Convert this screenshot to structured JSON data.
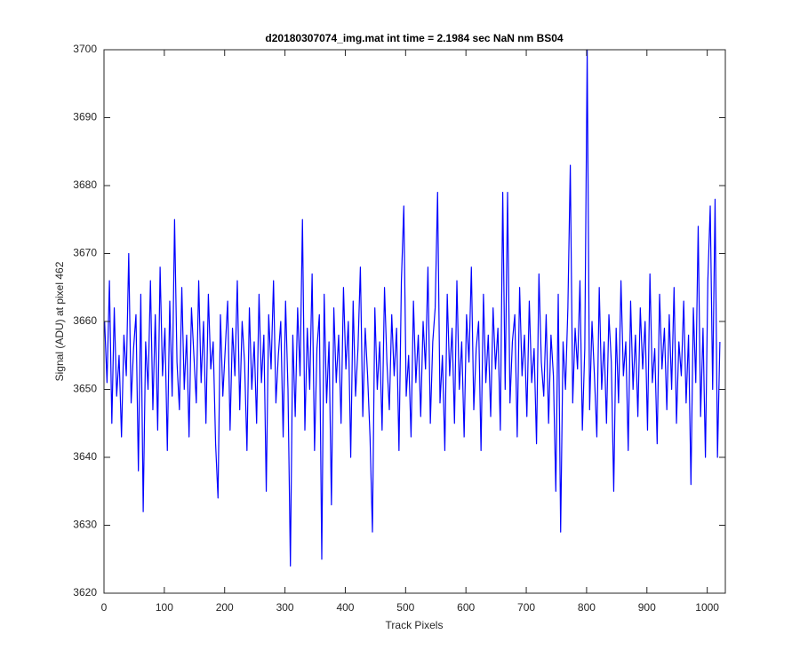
{
  "chart_data": {
    "type": "line",
    "title": "d20180307074_img.mat int time = 2.1984 sec  NaN nm BS04",
    "xlabel": "Track Pixels",
    "ylabel": "Signal (ADU) at pixel 462",
    "xlim": [
      0,
      1030
    ],
    "ylim": [
      3620,
      3700
    ],
    "xticks": [
      0,
      100,
      200,
      300,
      400,
      500,
      600,
      700,
      800,
      900,
      1000
    ],
    "yticks": [
      3620,
      3630,
      3640,
      3650,
      3660,
      3670,
      3680,
      3690,
      3700
    ],
    "grid": false,
    "x": [
      1,
      5,
      9,
      13,
      17,
      21,
      25,
      29,
      33,
      37,
      41,
      45,
      49,
      53,
      57,
      61,
      65,
      69,
      73,
      77,
      81,
      85,
      89,
      93,
      97,
      101,
      105,
      109,
      113,
      117,
      121,
      125,
      129,
      133,
      137,
      141,
      145,
      149,
      153,
      157,
      161,
      165,
      169,
      173,
      177,
      181,
      185,
      189,
      193,
      197,
      201,
      205,
      209,
      213,
      217,
      221,
      225,
      229,
      233,
      237,
      241,
      245,
      249,
      253,
      257,
      261,
      265,
      269,
      273,
      277,
      281,
      285,
      289,
      293,
      297,
      301,
      305,
      309,
      313,
      317,
      321,
      325,
      329,
      333,
      337,
      341,
      345,
      349,
      353,
      357,
      361,
      365,
      369,
      373,
      377,
      381,
      385,
      389,
      393,
      397,
      401,
      405,
      409,
      413,
      417,
      421,
      425,
      429,
      433,
      437,
      441,
      445,
      449,
      453,
      457,
      461,
      465,
      469,
      473,
      477,
      481,
      485,
      489,
      493,
      497,
      501,
      505,
      509,
      513,
      517,
      521,
      525,
      529,
      533,
      537,
      541,
      545,
      549,
      553,
      557,
      561,
      565,
      569,
      573,
      577,
      581,
      585,
      589,
      593,
      597,
      601,
      605,
      609,
      613,
      617,
      621,
      625,
      629,
      633,
      637,
      641,
      645,
      649,
      653,
      657,
      661,
      665,
      669,
      673,
      677,
      681,
      685,
      689,
      693,
      697,
      701,
      705,
      709,
      713,
      717,
      721,
      725,
      729,
      733,
      737,
      741,
      745,
      749,
      753,
      757,
      761,
      765,
      769,
      773,
      777,
      781,
      785,
      789,
      793,
      797,
      801,
      805,
      809,
      813,
      817,
      821,
      825,
      829,
      833,
      837,
      841,
      845,
      849,
      853,
      857,
      861,
      865,
      869,
      873,
      877,
      881,
      885,
      889,
      893,
      897,
      901,
      905,
      909,
      913,
      917,
      921,
      925,
      929,
      933,
      937,
      941,
      945,
      949,
      953,
      957,
      961,
      965,
      969,
      973,
      977,
      981,
      985,
      989,
      993,
      997,
      1001,
      1005,
      1009,
      1013,
      1017,
      1021
    ],
    "series": [
      {
        "color": "#0000ff",
        "values": [
          3660,
          3651,
          3666,
          3645,
          3662,
          3649,
          3655,
          3643,
          3658,
          3652,
          3670,
          3648,
          3656,
          3661,
          3638,
          3664,
          3632,
          3657,
          3650,
          3666,
          3647,
          3661,
          3644,
          3668,
          3652,
          3659,
          3641,
          3663,
          3649,
          3675,
          3654,
          3647,
          3665,
          3650,
          3658,
          3643,
          3662,
          3655,
          3648,
          3666,
          3651,
          3660,
          3645,
          3664,
          3653,
          3657,
          3642,
          3634,
          3661,
          3649,
          3656,
          3663,
          3644,
          3659,
          3652,
          3666,
          3647,
          3660,
          3654,
          3641,
          3662,
          3650,
          3657,
          3645,
          3664,
          3651,
          3658,
          3635,
          3661,
          3653,
          3666,
          3648,
          3655,
          3660,
          3643,
          3663,
          3650,
          3624,
          3658,
          3646,
          3662,
          3652,
          3675,
          3644,
          3659,
          3650,
          3667,
          3641,
          3656,
          3661,
          3625,
          3664,
          3648,
          3657,
          3633,
          3662,
          3651,
          3658,
          3645,
          3665,
          3653,
          3660,
          3640,
          3663,
          3649,
          3656,
          3668,
          3646,
          3659,
          3652,
          3643,
          3629,
          3662,
          3650,
          3657,
          3644,
          3665,
          3654,
          3647,
          3661,
          3652,
          3659,
          3641,
          3666,
          3677,
          3649,
          3655,
          3643,
          3663,
          3651,
          3658,
          3646,
          3660,
          3653,
          3668,
          3645,
          3657,
          3662,
          3679,
          3648,
          3655,
          3641,
          3664,
          3652,
          3659,
          3645,
          3666,
          3650,
          3657,
          3643,
          3661,
          3654,
          3668,
          3647,
          3656,
          3660,
          3641,
          3664,
          3651,
          3658,
          3646,
          3662,
          3653,
          3659,
          3644,
          3679,
          3650,
          3679,
          3648,
          3657,
          3661,
          3643,
          3665,
          3652,
          3658,
          3646,
          3663,
          3651,
          3656,
          3642,
          3667,
          3654,
          3649,
          3661,
          3645,
          3658,
          3652,
          3635,
          3664,
          3629,
          3657,
          3650,
          3662,
          3683,
          3648,
          3659,
          3653,
          3666,
          3644,
          3656,
          3700,
          3647,
          3660,
          3652,
          3643,
          3665,
          3650,
          3657,
          3645,
          3661,
          3654,
          3635,
          3659,
          3648,
          3666,
          3652,
          3657,
          3641,
          3663,
          3650,
          3658,
          3646,
          3662,
          3653,
          3660,
          3644,
          3667,
          3651,
          3656,
          3642,
          3664,
          3653,
          3659,
          3647,
          3661,
          3650,
          3665,
          3645,
          3657,
          3652,
          3663,
          3648,
          3658,
          3636,
          3662,
          3651,
          3674,
          3646,
          3659,
          3640,
          3666,
          3677,
          3650,
          3678,
          3640,
          3657
        ]
      }
    ]
  }
}
